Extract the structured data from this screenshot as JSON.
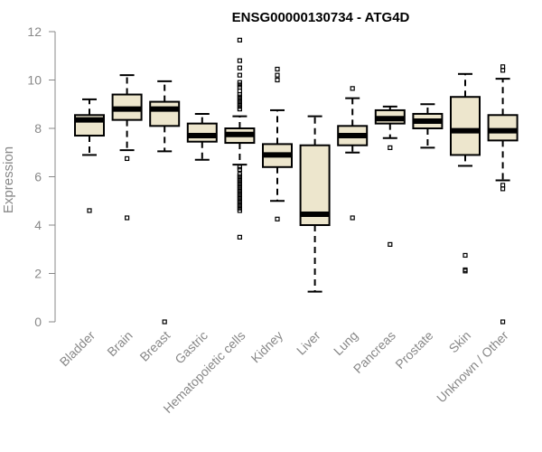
{
  "chart_data": {
    "type": "boxplot",
    "title": "ENSG00000130734 - ATG4D",
    "xlabel": "",
    "ylabel": "Expression",
    "ylim": [
      0,
      12
    ],
    "yticks": [
      0,
      2,
      4,
      6,
      8,
      10,
      12
    ],
    "grid": false,
    "box_color": "#ede6cd",
    "categories": [
      "Bladder",
      "Brain",
      "Breast",
      "Gastric",
      "Hematopoietic cells",
      "Kidney",
      "Liver",
      "Lung",
      "Pancreas",
      "Prostate",
      "Skin",
      "Unknown / Other"
    ],
    "boxes": [
      {
        "q1": 7.7,
        "median": 8.35,
        "q3": 8.55,
        "whisker_low": 6.9,
        "whisker_high": 9.2,
        "outliers": [
          4.6
        ]
      },
      {
        "q1": 8.35,
        "median": 8.8,
        "q3": 9.4,
        "whisker_low": 7.1,
        "whisker_high": 10.2,
        "outliers": [
          6.75,
          4.3
        ]
      },
      {
        "q1": 8.1,
        "median": 8.8,
        "q3": 9.1,
        "whisker_low": 7.05,
        "whisker_high": 9.95,
        "outliers": [
          0.0
        ]
      },
      {
        "q1": 7.45,
        "median": 7.7,
        "q3": 8.2,
        "whisker_low": 6.7,
        "whisker_high": 8.6,
        "outliers": []
      },
      {
        "q1": 7.4,
        "median": 7.75,
        "q3": 8.0,
        "whisker_low": 6.5,
        "whisker_high": 8.5,
        "outliers": [
          11.65,
          10.8,
          10.5,
          10.2,
          9.9,
          9.8,
          9.7,
          9.55,
          9.4,
          9.3,
          9.2,
          9.1,
          9.0,
          8.9,
          8.8,
          6.4,
          6.3,
          6.1,
          6.0,
          5.9,
          5.8,
          5.7,
          5.6,
          5.5,
          5.4,
          5.3,
          5.2,
          5.1,
          5.0,
          4.9,
          4.8,
          4.7,
          4.6,
          3.5
        ]
      },
      {
        "q1": 6.4,
        "median": 6.9,
        "q3": 7.35,
        "whisker_low": 5.0,
        "whisker_high": 8.75,
        "outliers": [
          10.45,
          10.2,
          10.0,
          4.25
        ]
      },
      {
        "q1": 4.0,
        "median": 4.45,
        "q3": 7.3,
        "whisker_low": 1.25,
        "whisker_high": 8.5,
        "outliers": []
      },
      {
        "q1": 7.3,
        "median": 7.7,
        "q3": 8.1,
        "whisker_low": 7.0,
        "whisker_high": 9.25,
        "outliers": [
          9.65,
          4.3
        ]
      },
      {
        "q1": 8.2,
        "median": 8.4,
        "q3": 8.75,
        "whisker_low": 7.6,
        "whisker_high": 8.9,
        "outliers": [
          7.2,
          3.2
        ]
      },
      {
        "q1": 8.0,
        "median": 8.3,
        "q3": 8.6,
        "whisker_low": 7.2,
        "whisker_high": 9.0,
        "outliers": []
      },
      {
        "q1": 6.9,
        "median": 7.9,
        "q3": 9.3,
        "whisker_low": 6.45,
        "whisker_high": 10.25,
        "outliers": [
          2.75,
          2.15,
          2.1
        ]
      },
      {
        "q1": 7.5,
        "median": 7.9,
        "q3": 8.55,
        "whisker_low": 5.85,
        "whisker_high": 10.05,
        "outliers": [
          10.55,
          10.4,
          5.65,
          5.5,
          0.0
        ]
      }
    ]
  }
}
